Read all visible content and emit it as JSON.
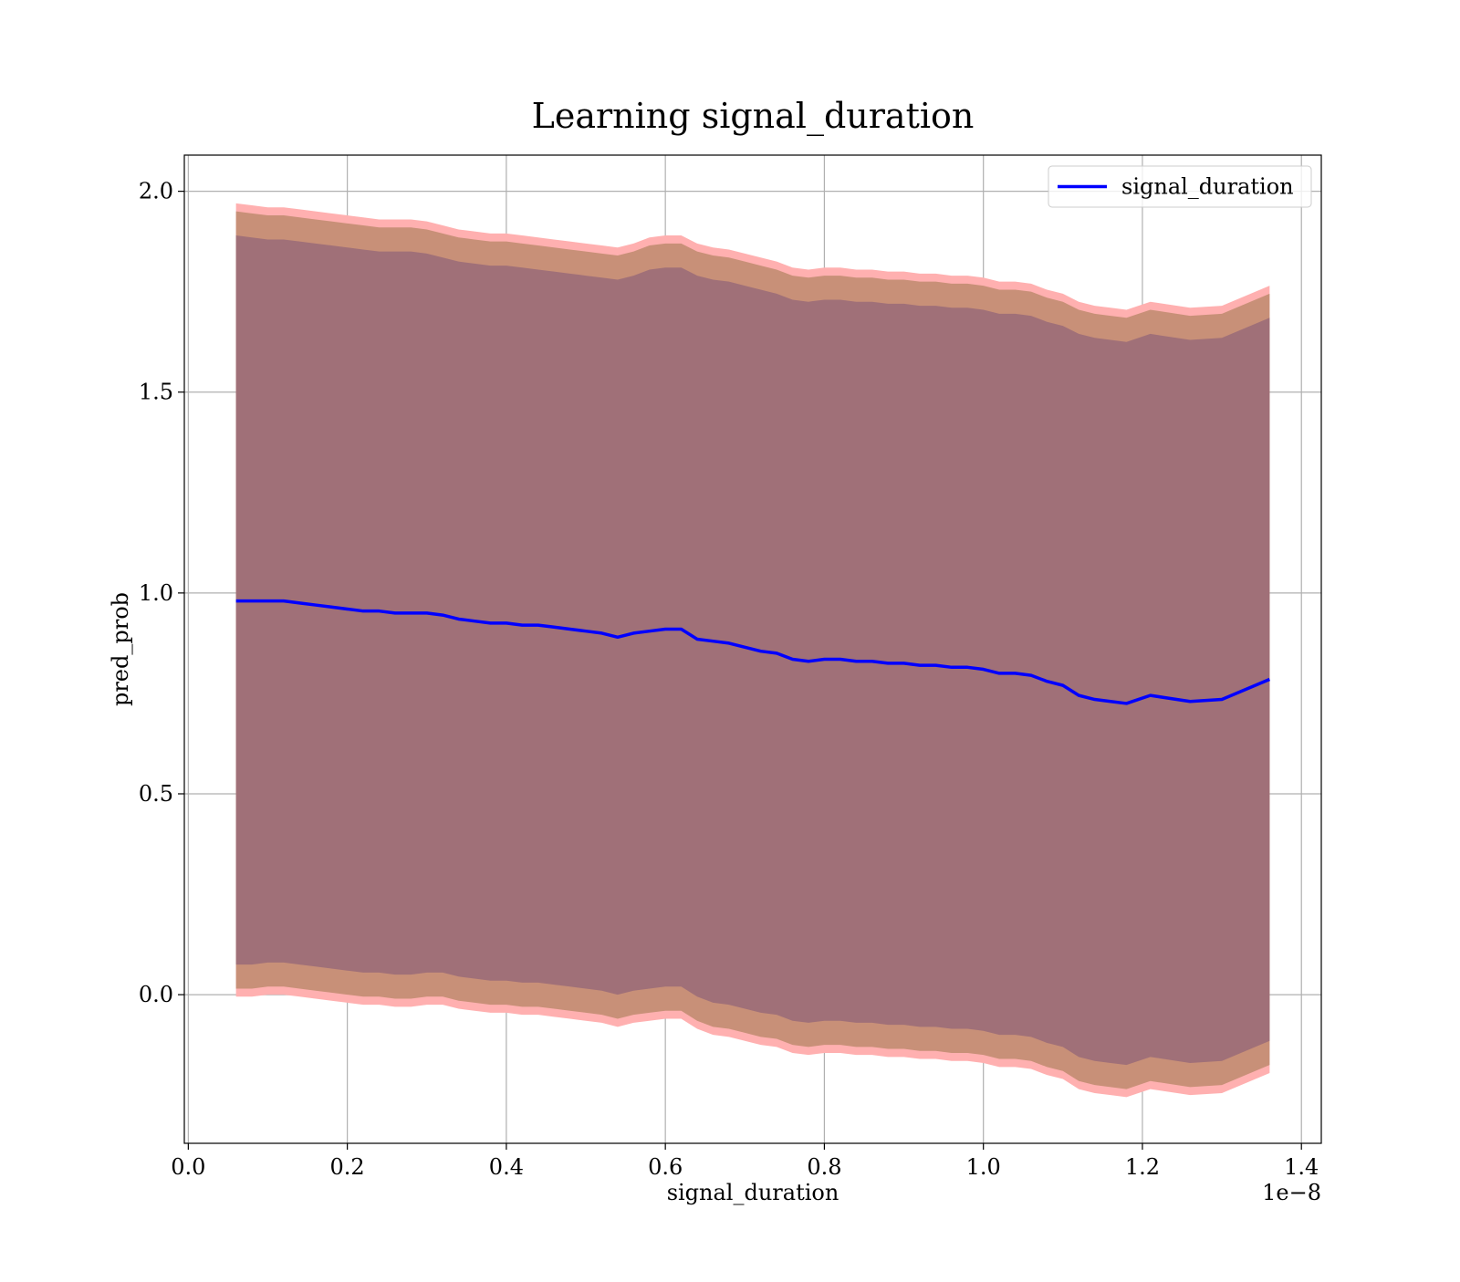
{
  "chart_data": {
    "type": "line",
    "title": "Learning signal_duration",
    "xlabel": "signal_duration",
    "ylabel": "pred_prob",
    "x_offset_label": "1e−8",
    "x_scale_exponent": -8,
    "xlim": [
      -0.005,
      1.425
    ],
    "ylim": [
      -0.37,
      2.09
    ],
    "x_ticks": [
      0.0,
      0.2,
      0.4,
      0.6,
      0.8,
      1.0,
      1.2,
      1.4
    ],
    "x_tick_labels": [
      "0.0",
      "0.2",
      "0.4",
      "0.6",
      "0.8",
      "1.0",
      "1.2",
      "1.4"
    ],
    "y_ticks": [
      0.0,
      0.5,
      1.0,
      1.5,
      2.0
    ],
    "y_tick_labels": [
      "0.0",
      "0.5",
      "1.0",
      "1.5",
      "2.0"
    ],
    "grid": true,
    "legend": {
      "position": "top-right",
      "entries": [
        "signal_duration"
      ]
    },
    "colors": {
      "line": "#0000ff",
      "band_outer": "#ffb0b0",
      "band_middle": "#c89078",
      "band_inner": "#a07078",
      "grid": "#b0b0b0"
    },
    "x": [
      0.06,
      0.08,
      0.1,
      0.12,
      0.14,
      0.16,
      0.18,
      0.2,
      0.22,
      0.24,
      0.26,
      0.28,
      0.3,
      0.32,
      0.34,
      0.36,
      0.38,
      0.4,
      0.42,
      0.44,
      0.46,
      0.48,
      0.5,
      0.52,
      0.54,
      0.56,
      0.58,
      0.6,
      0.62,
      0.64,
      0.66,
      0.68,
      0.7,
      0.72,
      0.74,
      0.76,
      0.78,
      0.8,
      0.82,
      0.84,
      0.86,
      0.88,
      0.9,
      0.92,
      0.94,
      0.96,
      0.98,
      1.0,
      1.02,
      1.04,
      1.06,
      1.08,
      1.1,
      1.12,
      1.14,
      1.16,
      1.18,
      1.21,
      1.26,
      1.3,
      1.36
    ],
    "series": [
      {
        "name": "signal_duration",
        "values": [
          0.98,
          0.98,
          0.98,
          0.98,
          0.975,
          0.97,
          0.965,
          0.96,
          0.955,
          0.955,
          0.95,
          0.95,
          0.95,
          0.945,
          0.935,
          0.93,
          0.925,
          0.925,
          0.92,
          0.92,
          0.915,
          0.91,
          0.905,
          0.9,
          0.89,
          0.9,
          0.905,
          0.91,
          0.91,
          0.885,
          0.88,
          0.875,
          0.865,
          0.855,
          0.85,
          0.835,
          0.83,
          0.835,
          0.835,
          0.83,
          0.83,
          0.825,
          0.825,
          0.82,
          0.82,
          0.815,
          0.815,
          0.81,
          0.8,
          0.8,
          0.795,
          0.78,
          0.77,
          0.745,
          0.735,
          0.73,
          0.725,
          0.745,
          0.73,
          0.735,
          0.785
        ]
      }
    ],
    "bands": [
      {
        "upper": [
          1.97,
          1.965,
          1.96,
          1.96,
          1.955,
          1.95,
          1.945,
          1.94,
          1.935,
          1.93,
          1.93,
          1.93,
          1.925,
          1.915,
          1.905,
          1.9,
          1.895,
          1.895,
          1.89,
          1.885,
          1.88,
          1.875,
          1.87,
          1.865,
          1.86,
          1.87,
          1.885,
          1.89,
          1.89,
          1.87,
          1.86,
          1.855,
          1.845,
          1.835,
          1.825,
          1.81,
          1.805,
          1.81,
          1.81,
          1.805,
          1.805,
          1.8,
          1.8,
          1.795,
          1.795,
          1.79,
          1.79,
          1.785,
          1.775,
          1.775,
          1.77,
          1.755,
          1.745,
          1.725,
          1.715,
          1.71,
          1.705,
          1.725,
          1.71,
          1.715,
          1.765
        ],
        "lower": [
          -0.005,
          -0.005,
          0.0,
          0.0,
          -0.005,
          -0.01,
          -0.015,
          -0.02,
          -0.025,
          -0.025,
          -0.03,
          -0.03,
          -0.025,
          -0.025,
          -0.035,
          -0.04,
          -0.045,
          -0.045,
          -0.05,
          -0.05,
          -0.055,
          -0.06,
          -0.065,
          -0.07,
          -0.08,
          -0.07,
          -0.065,
          -0.06,
          -0.06,
          -0.085,
          -0.1,
          -0.105,
          -0.115,
          -0.125,
          -0.13,
          -0.145,
          -0.15,
          -0.145,
          -0.145,
          -0.15,
          -0.15,
          -0.155,
          -0.155,
          -0.16,
          -0.16,
          -0.165,
          -0.165,
          -0.17,
          -0.18,
          -0.18,
          -0.185,
          -0.2,
          -0.21,
          -0.235,
          -0.245,
          -0.25,
          -0.255,
          -0.235,
          -0.25,
          -0.245,
          -0.195
        ]
      },
      {
        "upper": [
          1.95,
          1.945,
          1.94,
          1.94,
          1.935,
          1.93,
          1.925,
          1.92,
          1.915,
          1.91,
          1.91,
          1.91,
          1.905,
          1.895,
          1.885,
          1.88,
          1.875,
          1.875,
          1.87,
          1.865,
          1.86,
          1.855,
          1.85,
          1.845,
          1.84,
          1.85,
          1.865,
          1.87,
          1.87,
          1.85,
          1.84,
          1.835,
          1.825,
          1.815,
          1.805,
          1.79,
          1.785,
          1.79,
          1.79,
          1.785,
          1.785,
          1.78,
          1.78,
          1.775,
          1.775,
          1.77,
          1.77,
          1.765,
          1.755,
          1.755,
          1.75,
          1.735,
          1.725,
          1.705,
          1.695,
          1.69,
          1.685,
          1.705,
          1.69,
          1.695,
          1.745
        ],
        "lower": [
          0.015,
          0.015,
          0.02,
          0.02,
          0.015,
          0.01,
          0.005,
          0.0,
          -0.005,
          -0.005,
          -0.01,
          -0.01,
          -0.005,
          -0.005,
          -0.015,
          -0.02,
          -0.025,
          -0.025,
          -0.03,
          -0.03,
          -0.035,
          -0.04,
          -0.045,
          -0.05,
          -0.06,
          -0.05,
          -0.045,
          -0.04,
          -0.04,
          -0.065,
          -0.08,
          -0.085,
          -0.095,
          -0.105,
          -0.11,
          -0.125,
          -0.13,
          -0.125,
          -0.125,
          -0.13,
          -0.13,
          -0.135,
          -0.135,
          -0.14,
          -0.14,
          -0.145,
          -0.145,
          -0.15,
          -0.16,
          -0.16,
          -0.165,
          -0.18,
          -0.19,
          -0.215,
          -0.225,
          -0.23,
          -0.235,
          -0.215,
          -0.23,
          -0.225,
          -0.175
        ]
      },
      {
        "upper": [
          1.89,
          1.885,
          1.88,
          1.88,
          1.875,
          1.87,
          1.865,
          1.86,
          1.855,
          1.85,
          1.85,
          1.85,
          1.845,
          1.835,
          1.825,
          1.82,
          1.815,
          1.815,
          1.81,
          1.805,
          1.8,
          1.795,
          1.79,
          1.785,
          1.78,
          1.79,
          1.805,
          1.81,
          1.81,
          1.79,
          1.78,
          1.775,
          1.765,
          1.755,
          1.745,
          1.73,
          1.725,
          1.73,
          1.73,
          1.725,
          1.725,
          1.72,
          1.72,
          1.715,
          1.715,
          1.71,
          1.71,
          1.705,
          1.695,
          1.695,
          1.69,
          1.675,
          1.665,
          1.645,
          1.635,
          1.63,
          1.625,
          1.645,
          1.63,
          1.635,
          1.685
        ],
        "lower": [
          0.075,
          0.075,
          0.08,
          0.08,
          0.075,
          0.07,
          0.065,
          0.06,
          0.055,
          0.055,
          0.05,
          0.05,
          0.055,
          0.055,
          0.045,
          0.04,
          0.035,
          0.035,
          0.03,
          0.03,
          0.025,
          0.02,
          0.015,
          0.01,
          0.0,
          0.01,
          0.015,
          0.02,
          0.02,
          -0.005,
          -0.02,
          -0.025,
          -0.035,
          -0.045,
          -0.05,
          -0.065,
          -0.07,
          -0.065,
          -0.065,
          -0.07,
          -0.07,
          -0.075,
          -0.075,
          -0.08,
          -0.08,
          -0.085,
          -0.085,
          -0.09,
          -0.1,
          -0.1,
          -0.105,
          -0.12,
          -0.13,
          -0.155,
          -0.165,
          -0.17,
          -0.175,
          -0.155,
          -0.17,
          -0.165,
          -0.115
        ]
      }
    ]
  }
}
